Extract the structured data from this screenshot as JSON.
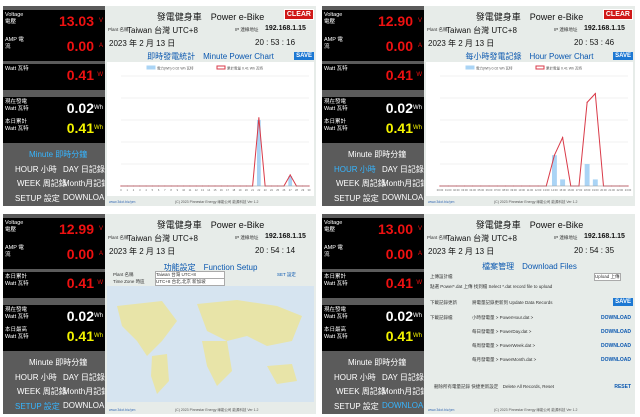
{
  "panels": [
    {
      "voltage_label": "Voltage 電壓",
      "voltage": "13.03",
      "voltage_unit": "V",
      "amp_label": "AMP 電流",
      "amp": "0.00",
      "amp_unit": "A",
      "watt_label": "Watt 瓦特",
      "watt": "0.41",
      "watt_unit": "W",
      "cur_label": "現在發電 Watt 瓦特",
      "cur": "0.02",
      "cur_unit": "Wh",
      "day_label": "本日累計 Watt 瓦特",
      "day": "0.41",
      "day_unit": "Wh",
      "title": "發電健身車　Power e-Bike",
      "clear": "CLEAR",
      "plant_label": "Plant 名稱",
      "plant": "Taiwan 台灣 UTC+8",
      "ip_label": "IP 連線地址",
      "ip": "192.168.1.15",
      "date": "2023 年 2 月 13 日",
      "time": "20 : 53 : 16",
      "page_title": "即時發電統計　Minute Power Chart",
      "save": "SAVE",
      "nav": [
        "Minute 即時分鐘",
        "HOUR 小時",
        "DAY 日記錄",
        "WEEK 周記錄",
        "Month月記錄",
        "SETUP 設定",
        "DOWNLOAD"
      ],
      "url": "www.3dot.biz/pm",
      "copyright": "(C) 2023 Pinnestar Energy 綠能公司 能源科技 Ver 1.2"
    },
    {
      "voltage_label": "Voltage 電壓",
      "voltage": "12.90",
      "voltage_unit": "V",
      "amp_label": "AMP 電流",
      "amp": "0.00",
      "amp_unit": "A",
      "watt_label": "Watt 瓦特",
      "watt": "0.41",
      "watt_unit": "W",
      "cur_label": "現在發電 Watt 瓦特",
      "cur": "0.02",
      "cur_unit": "Wh",
      "day_label": "本日累計 Watt 瓦特",
      "day": "0.41",
      "day_unit": "Wh",
      "title": "發電健身車　Power e-Bike",
      "clear": "CLEAR",
      "plant_label": "Plant 名稱",
      "plant": "Taiwan 台灣 UTC+8",
      "ip_label": "IP 連線地址",
      "ip": "192.168.1.15",
      "date": "2023 年 2 月 13 日",
      "time": "20 : 53 : 46",
      "page_title": "每小時發電記錄　Hour Power Chart",
      "save": "SAVE",
      "nav": [
        "Minute 即時分鐘",
        "HOUR 小時",
        "DAY 日記錄",
        "WEEK 周記錄",
        "Month月記錄",
        "SETUP 設定",
        "DOWNLOAD"
      ],
      "url": "www.3dot.biz/pm",
      "copyright": "(C) 2023 Pinnestar Energy 綠能公司 能源科技 Ver 1.2"
    },
    {
      "voltage_label": "Voltage 電壓",
      "voltage": "12.99",
      "voltage_unit": "V",
      "amp_label": "AMP 電流",
      "amp": "0.00",
      "amp_unit": "A",
      "watt_label": "本日累計 Watt 瓦特",
      "watt": "0.41",
      "watt_unit": "W",
      "cur_label": "現在發電 Watt 瓦特",
      "cur": "0.02",
      "cur_unit": "Wh",
      "day_label": "本日最高 Watt 瓦特",
      "day": "0.41",
      "day_unit": "Wh",
      "title": "發電健身車　Power e-Bike",
      "plant_label": "Plant 名稱",
      "plant": "Taiwan 台灣 UTC+8",
      "ip_label": "IP 連線地址",
      "ip": "192.168.1.15",
      "date": "2023 年 2 月 13 日",
      "time": "20 : 54 : 14",
      "page_title": "功能設定　Function Setup",
      "field_plant_label": "Plant 名稱",
      "field_plant": "Taiwan 台灣 UTC+8",
      "field_tz_label": "Time Zone 時區",
      "field_tz": "UTC+8 台北,北京 新加坡",
      "set": "SET 設定",
      "nav": [
        "Minute 即時分鐘",
        "HOUR 小時",
        "DAY 日記錄",
        "WEEK 周記錄",
        "Month月記錄",
        "SETUP 設定",
        "DOWNLOAD"
      ],
      "url": "www.3dot.biz/pm",
      "copyright": "(C) 2023 Pinnestar Energy 綠能公司 能源科技 Ver 1.2"
    },
    {
      "voltage_label": "Voltage 電壓",
      "voltage": "13.00",
      "voltage_unit": "V",
      "amp_label": "AMP 電流",
      "amp": "0.00",
      "amp_unit": "A",
      "watt_label": "本日累計 Watt 瓦特",
      "watt": "0.41",
      "watt_unit": "W",
      "cur_label": "現在發電 Watt 瓦特",
      "cur": "0.02",
      "cur_unit": "Wh",
      "day_label": "本日最高 Watt 瓦特",
      "day": "0.41",
      "day_unit": "Wh",
      "title": "發電健身車　Power e-Bike",
      "plant_label": "Plant 名稱",
      "plant": "Taiwan 台灣 UTC+8",
      "ip_label": "IP 連線地址",
      "ip": "192.168.1.15",
      "date": "2023 年 2 月 13 日",
      "time": "20 : 54 : 35",
      "page_title": "檔案管理　Download Files",
      "upload_label": "上傳設計檔",
      "upload_btn": "Upload 上傳",
      "upload_hint": "點選 Power*.dat 上傳 找到檔 Select *.dat record file to upload",
      "update_label": "下載記錄更新",
      "update_text": "將電量記錄更新到 Update Data Records",
      "save": "SAVE",
      "dl_label": "下載記錄檔",
      "downloads": [
        {
          "text": "小時發電量 > PowerHour.dat >",
          "link": "DOWNLOAD"
        },
        {
          "text": "每日發電量 > PowerDay.dat >",
          "link": "DOWNLOAD"
        },
        {
          "text": "每周發電量 > PowerWeek.dat >",
          "link": "DOWNLOAD"
        },
        {
          "text": "每月發電量 > PowerMonth.dat >",
          "link": "DOWNLOAD"
        }
      ],
      "delete_text": "刪除所有電量記錄 快捷更新設定　Delete All Records, Reset",
      "reset": "RESET",
      "nav": [
        "Minute 即時分鐘",
        "HOUR 小時",
        "DAY 日記錄",
        "WEEK 周記錄",
        "Month月記錄",
        "SETUP 設定",
        "DOWNLOAD"
      ],
      "url": "www.3dot.biz/pm",
      "copyright": "(C) 2023 Pinnestar Energy 綠能公司 能源科技 Ver 1.2"
    }
  ],
  "chart_data": [
    {
      "type": "bar",
      "title": "",
      "legend": [
        "電力(Wh) 0.02 Wh 瓦特",
        "累計電量 0.41 Wh 瓦特"
      ],
      "x": [
        0,
        1,
        2,
        3,
        4,
        5,
        6,
        7,
        8,
        9,
        10,
        11,
        12,
        13,
        14,
        15,
        16,
        17,
        18,
        19,
        20,
        21,
        22,
        23,
        24,
        25,
        26,
        27,
        28,
        29,
        30
      ],
      "series": [
        {
          "name": "電力(Wh) 0.02 Wh 瓦特",
          "values": [
            0,
            0,
            0,
            0,
            0,
            0,
            0,
            0,
            0,
            0,
            0,
            0,
            0,
            0,
            0,
            0,
            0,
            0,
            0,
            0,
            0,
            0,
            0.6,
            0,
            0,
            0,
            0,
            0.09,
            0,
            0,
            0
          ]
        },
        {
          "name": "累計電量 0.41 Wh 瓦特",
          "values": [
            0,
            0,
            0,
            0,
            0,
            0,
            0,
            0,
            0,
            0,
            0,
            0,
            0,
            0,
            0,
            0,
            0,
            0,
            0,
            0,
            0,
            0,
            0.62,
            0,
            0,
            0,
            0,
            0.1,
            0,
            0,
            0
          ]
        }
      ],
      "ylim": [
        0,
        1.0
      ]
    },
    {
      "type": "bar",
      "title": "",
      "legend": [
        "電力(Wh) 0.02 Wh 瓦特",
        "累計電量 0.41 Wh 瓦特"
      ],
      "x": [
        "00:00",
        "01:00",
        "02:00",
        "03:00",
        "04:00",
        "05:00",
        "06:00",
        "07:00",
        "08:00",
        "09:00",
        "10:00",
        "11:00",
        "12:00",
        "13:00",
        "14:00",
        "15:00",
        "16:00",
        "17:00",
        "18:00",
        "19:00",
        "20:00",
        "21:00",
        "22:00",
        "23:00"
      ],
      "series": [
        {
          "name": "電力(Wh) 0.02 Wh 瓦特",
          "values": [
            0,
            0,
            0,
            0,
            0,
            0,
            0,
            0,
            0,
            0,
            0,
            0,
            0,
            0,
            0.14,
            0.03,
            0,
            0,
            0.1,
            0.03,
            0,
            0,
            0,
            0
          ]
        },
        {
          "name": "累計電量 0.41 Wh 瓦特",
          "values": [
            0,
            0,
            0,
            0,
            0,
            0,
            0,
            0,
            0,
            0,
            0,
            0,
            0,
            0,
            0.14,
            0.22,
            0,
            0,
            0.38,
            0.42,
            0,
            0,
            0,
            0
          ]
        }
      ],
      "ylim": [
        0,
        0.5
      ]
    }
  ]
}
